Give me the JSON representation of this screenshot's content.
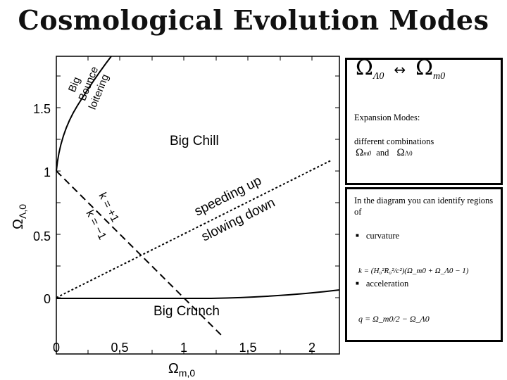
{
  "slide": {
    "title": "Cosmological Evolution Modes"
  },
  "plot": {
    "xlabel_main": "Ω",
    "xlabel_sub": "m,0",
    "ylabel_main": "Ω",
    "ylabel_sub": "Λ,0",
    "xticks": [
      "0",
      "0.5",
      "1",
      "1.5",
      "2"
    ],
    "yticks": [
      "0",
      "0.5",
      "1",
      "1.5"
    ],
    "regions": {
      "big_chill": "Big Chill",
      "big_crunch": "Big Crunch",
      "big": "Big",
      "bounce": "Bounce",
      "loitering": "loitering",
      "speeding_up": "speeding up",
      "slowing_down": "slowing down",
      "k_pos": "k = +1",
      "k_neg": "k = −1"
    }
  },
  "panel_top": {
    "omega_lambda": "Ω",
    "omega_lambda_sub": "Λ0",
    "arrow": "↔",
    "omega_m": "Ω",
    "omega_m_sub": "m0",
    "expansion_modes": "Expansion Modes:",
    "different_combinations": "different combinations",
    "and_text": "and",
    "omega_m_small": "Ω",
    "omega_m_small_sub": "m0",
    "omega_l_small": "Ω",
    "omega_l_small_sub": "Λ0"
  },
  "panel_bottom": {
    "intro": "In the diagram you can identify regions of",
    "bullet1": "curvature",
    "bullet2": "acceleration",
    "eq_k": "k = (H₀²R₀²/c²)(Ω_m0 + Ω_Λ0 − 1)",
    "eq_q": "q = Ω_m0/2 − Ω_Λ0"
  }
}
